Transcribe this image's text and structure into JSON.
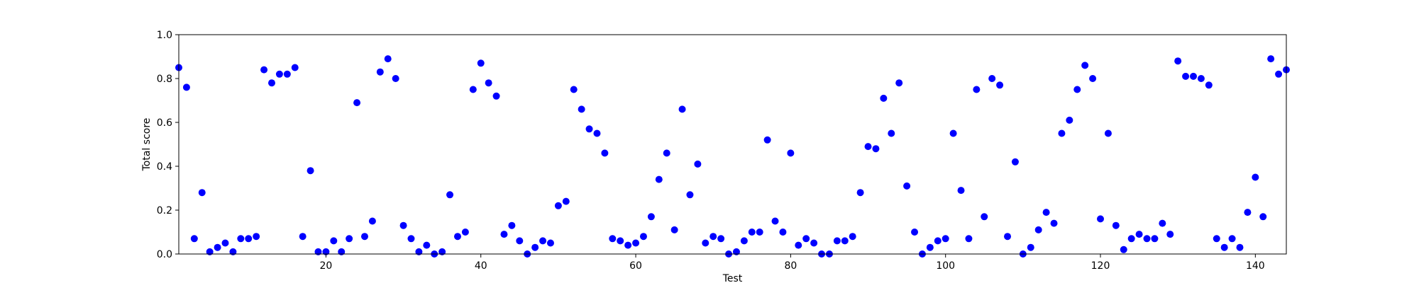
{
  "chart_data": {
    "type": "scatter",
    "title": "",
    "xlabel": "Test",
    "ylabel": "Total score",
    "xlim": [
      1,
      144
    ],
    "ylim": [
      0.0,
      1.0
    ],
    "xticks": [
      20,
      40,
      60,
      80,
      100,
      120,
      140
    ],
    "yticks": [
      0.0,
      0.2,
      0.4,
      0.6,
      0.8,
      1.0
    ],
    "ytick_labels": [
      "0.0",
      "0.2",
      "0.4",
      "0.6",
      "0.8",
      "1.0"
    ],
    "grid": false,
    "marker_color": "#0000ff",
    "x": [
      1,
      2,
      3,
      4,
      5,
      6,
      7,
      8,
      9,
      10,
      11,
      12,
      13,
      14,
      15,
      16,
      17,
      18,
      19,
      20,
      21,
      22,
      23,
      24,
      25,
      26,
      27,
      28,
      29,
      30,
      31,
      32,
      33,
      34,
      35,
      36,
      37,
      38,
      39,
      40,
      41,
      42,
      43,
      44,
      45,
      46,
      47,
      48,
      49,
      50,
      51,
      52,
      53,
      54,
      55,
      56,
      57,
      58,
      59,
      60,
      61,
      62,
      63,
      64,
      65,
      66,
      67,
      68,
      69,
      70,
      71,
      72,
      73,
      74,
      75,
      76,
      77,
      78,
      79,
      80,
      81,
      82,
      83,
      84,
      85,
      86,
      87,
      88,
      89,
      90,
      91,
      92,
      93,
      94,
      95,
      96,
      97,
      98,
      99,
      100,
      101,
      102,
      103,
      104,
      105,
      106,
      107,
      108,
      109,
      110,
      111,
      112,
      113,
      114,
      115,
      116,
      117,
      118,
      119,
      120,
      121,
      122,
      123,
      124,
      125,
      126,
      127,
      128,
      129,
      130,
      131,
      132,
      133,
      134,
      135,
      136,
      137,
      138,
      139,
      140,
      141,
      142,
      143,
      144
    ],
    "y": [
      0.85,
      0.76,
      0.07,
      0.28,
      0.01,
      0.03,
      0.05,
      0.01,
      0.07,
      0.07,
      0.08,
      0.84,
      0.78,
      0.82,
      0.82,
      0.85,
      0.08,
      0.38,
      0.01,
      0.01,
      0.06,
      0.01,
      0.07,
      0.69,
      0.08,
      0.15,
      0.83,
      0.89,
      0.8,
      0.13,
      0.07,
      0.01,
      0.04,
      0.0,
      0.01,
      0.27,
      0.08,
      0.1,
      0.75,
      0.87,
      0.78,
      0.72,
      0.09,
      0.13,
      0.06,
      0.0,
      0.03,
      0.06,
      0.05,
      0.22,
      0.24,
      0.75,
      0.66,
      0.57,
      0.55,
      0.46,
      0.07,
      0.06,
      0.04,
      0.05,
      0.08,
      0.17,
      0.34,
      0.46,
      0.11,
      0.66,
      0.27,
      0.41,
      0.05,
      0.08,
      0.07,
      0.0,
      0.01,
      0.06,
      0.1,
      0.1,
      0.52,
      0.15,
      0.1,
      0.46,
      0.04,
      0.07,
      0.05,
      0.0,
      0.0,
      0.06,
      0.06,
      0.08,
      0.28,
      0.49,
      0.48,
      0.71,
      0.55,
      0.78,
      0.31,
      0.1,
      0.0,
      0.03,
      0.06,
      0.07,
      0.55,
      0.29,
      0.07,
      0.75,
      0.17,
      0.8,
      0.77,
      0.08,
      0.42,
      0.0,
      0.03,
      0.11,
      0.19,
      0.14,
      0.55,
      0.61,
      0.75,
      0.86,
      0.8,
      0.16,
      0.55,
      0.13,
      0.02,
      0.07,
      0.09,
      0.07,
      0.07,
      0.14,
      0.09,
      0.88,
      0.81,
      0.81,
      0.8,
      0.77,
      0.07,
      0.03,
      0.07,
      0.03,
      0.19,
      0.35,
      0.17,
      0.89,
      0.82,
      0.84
    ]
  }
}
